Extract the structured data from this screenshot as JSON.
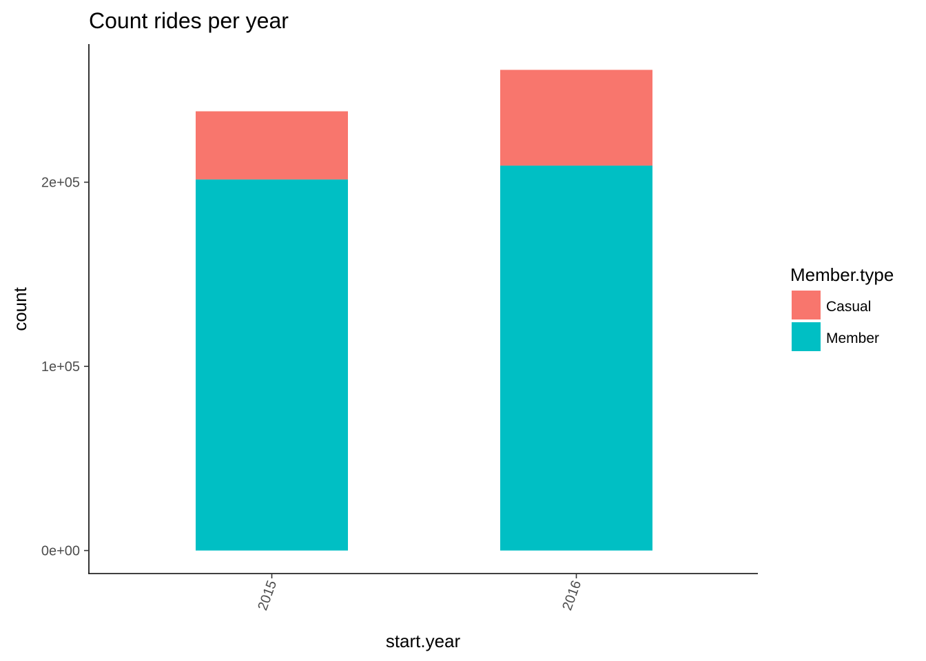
{
  "chart_data": {
    "type": "bar",
    "stacked": true,
    "title": "Count rides per year",
    "xlabel": "start.year",
    "ylabel": "count",
    "categories": [
      "2015",
      "2016"
    ],
    "series": [
      {
        "name": "Member",
        "color": "#00BFC4",
        "values": [
          201500,
          209000
        ]
      },
      {
        "name": "Casual",
        "color": "#F8766D",
        "values": [
          37000,
          52000
        ]
      }
    ],
    "ylim": [
      -12500,
      275000
    ],
    "yticks": [
      {
        "value": 0,
        "label": "0e+00"
      },
      {
        "value": 100000,
        "label": "1e+05"
      },
      {
        "value": 200000,
        "label": "2e+05"
      }
    ],
    "xtick_rotation_deg": -70,
    "grid": false,
    "legend": {
      "title": "Member.type",
      "position": "right",
      "entries": [
        {
          "label": "Casual",
          "color": "#F8766D"
        },
        {
          "label": "Member",
          "color": "#00BFC4"
        }
      ]
    }
  }
}
